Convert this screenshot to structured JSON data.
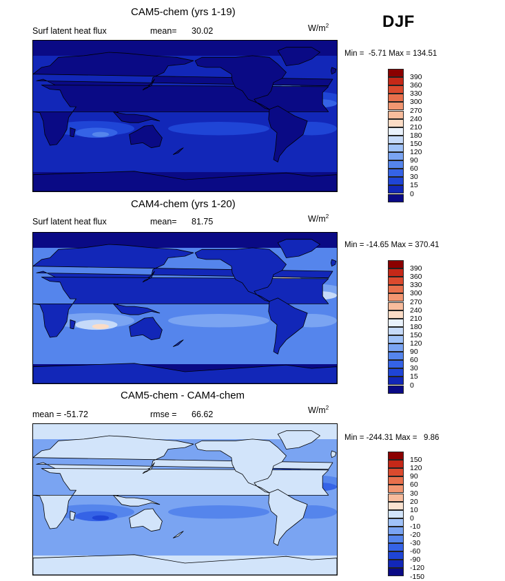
{
  "season": "DJF",
  "colors": {
    "abs_palette": [
      "#0a0a85",
      "#1227b8",
      "#1f45d6",
      "#3563e6",
      "#5585ec",
      "#7aa4f2",
      "#a0c2f8",
      "#c6daf9",
      "#e9f1fb",
      "#fbdcc6",
      "#f8bc9c",
      "#f29671",
      "#e8704c",
      "#db4a2e",
      "#c52818",
      "#8b0000"
    ],
    "diff_palette": [
      "#0a0a85",
      "#1227b8",
      "#1f45d6",
      "#3563e6",
      "#5585ec",
      "#7aa4f2",
      "#a0c2f8",
      "#d2e4fa",
      "#fbe2d0",
      "#f8bc9c",
      "#f29671",
      "#e8704c",
      "#db4a2e",
      "#c52818",
      "#8b0000"
    ]
  },
  "panels": [
    {
      "title": "CAM5-chem (yrs 1-19)",
      "left_label": "Surf latent heat flux",
      "stat_label": "mean=",
      "stat_value": "30.02",
      "units": "W/m",
      "units_sup": "2",
      "minmax": "Min =  -5.71 Max = 134.51",
      "colorbar_labels": [
        "390",
        "360",
        "330",
        "300",
        "270",
        "240",
        "210",
        "180",
        "150",
        "120",
        "90",
        "60",
        "30",
        "15",
        "0"
      ],
      "map_colors": {
        "ocean_bg": "#1227b8",
        "ocean_mid": "#1f45d6",
        "ocean_bright": "#3563e6",
        "warm": "#5585ec",
        "hot": "#7aa4f2",
        "land": "#0a0a85",
        "polar": "#0a0a85"
      }
    },
    {
      "title": "CAM4-chem (yrs 1-20)",
      "left_label": "Surf latent heat flux",
      "stat_label": "mean=",
      "stat_value": "81.75",
      "units": "W/m",
      "units_sup": "2",
      "minmax": "Min = -14.65 Max = 370.41",
      "colorbar_labels": [
        "390",
        "360",
        "330",
        "300",
        "270",
        "240",
        "210",
        "180",
        "150",
        "120",
        "90",
        "60",
        "30",
        "15",
        "0"
      ],
      "map_colors": {
        "ocean_bg": "#5585ec",
        "ocean_mid": "#7aa4f2",
        "ocean_bright": "#c6daf9",
        "warm": "#fbdcc6",
        "hot": "#db4a2e",
        "land": "#1227b8",
        "polar": "#0a0a85"
      }
    },
    {
      "title": "CAM5-chem - CAM4-chem",
      "left_label": "mean = -51.72",
      "stat_label": "rmse =",
      "stat_value": "66.62",
      "units": "W/m",
      "units_sup": "2",
      "minmax": "Min = -244.31 Max =   9.86",
      "colorbar_labels": [
        "150",
        "120",
        "90",
        "60",
        "30",
        "20",
        "10",
        "0",
        "-10",
        "-20",
        "-30",
        "-60",
        "-90",
        "-120",
        "-150"
      ],
      "map_colors": {
        "ocean_bg": "#7aa4f2",
        "ocean_mid": "#5585ec",
        "ocean_bright": "#3563e6",
        "warm": "#1f45d6",
        "hot": "#0a0a85",
        "land": "#d2e4fa",
        "polar": "#d2e4fa"
      }
    }
  ]
}
